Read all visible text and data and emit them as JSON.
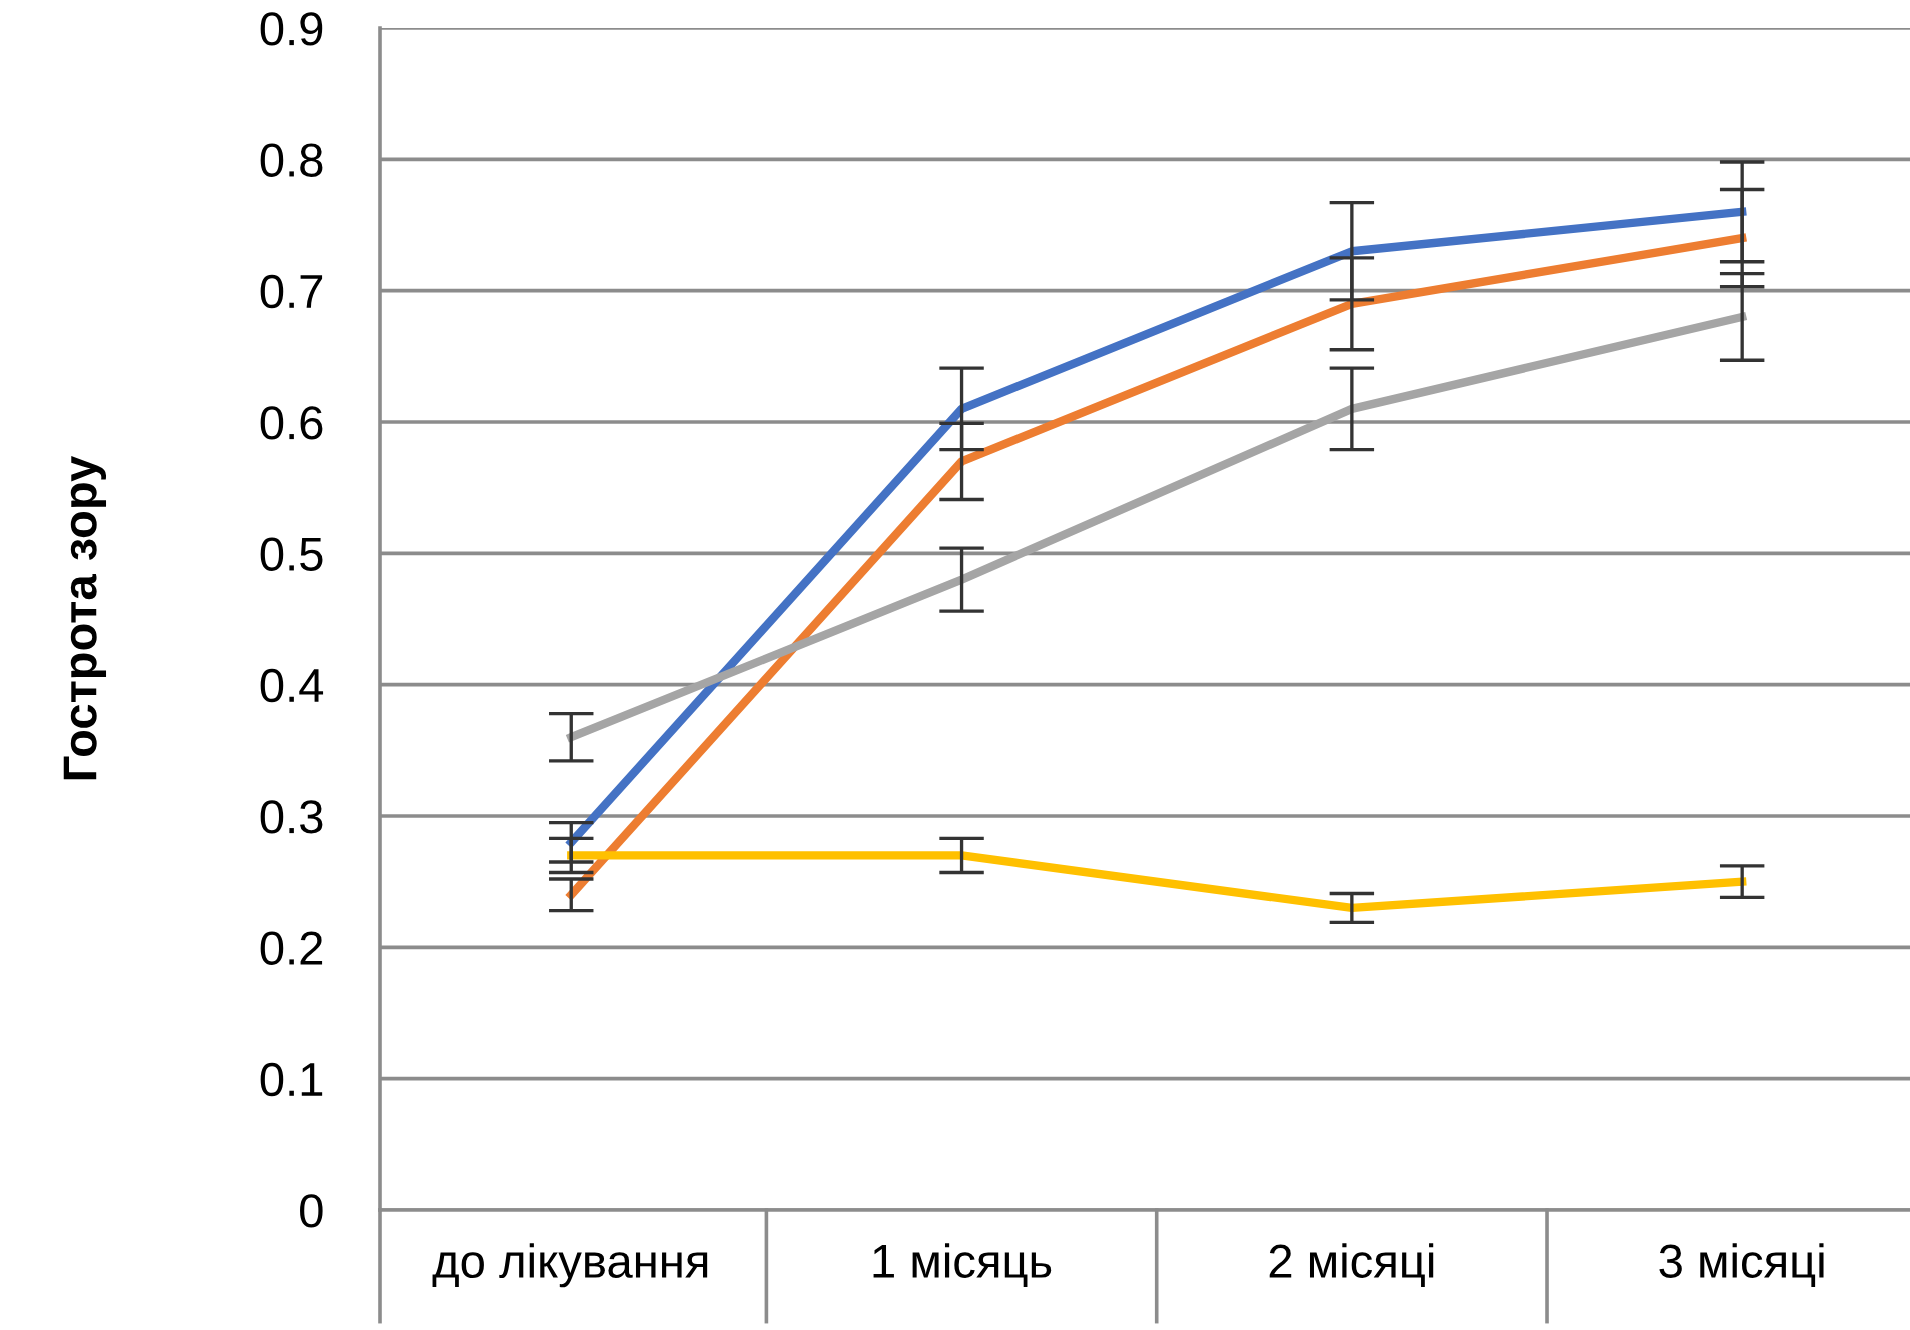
{
  "chart_data": {
    "type": "line",
    "ylabel": "Гострота зору",
    "categories": [
      "до лікування",
      "1 місяць",
      "2 місяці",
      "3 місяці"
    ],
    "series": [
      {
        "color": "#4472c4",
        "values": [
          0.28,
          0.61,
          0.73,
          0.76
        ],
        "errors": [
          0.015,
          0.031,
          0.037,
          0.038
        ]
      },
      {
        "color": "#ed7d31",
        "values": [
          0.24,
          0.57,
          0.69,
          0.74
        ],
        "errors": [
          0.012,
          0.029,
          0.035,
          0.037
        ]
      },
      {
        "color": "#a5a5a5",
        "values": [
          0.36,
          0.48,
          0.61,
          0.68
        ],
        "errors": [
          0.018,
          0.024,
          0.031,
          0.033
        ]
      },
      {
        "color": "#ffc000",
        "values": [
          0.27,
          0.27,
          0.23,
          0.25
        ],
        "errors": [
          0.013,
          0.013,
          0.011,
          0.012
        ]
      }
    ],
    "ylim": [
      0,
      0.9
    ],
    "yticks": [
      0,
      0.1,
      0.2,
      0.3,
      0.4,
      0.5,
      0.6,
      0.7,
      0.8,
      0.9
    ],
    "grid": "y",
    "legend": false,
    "marker": "none",
    "line_style": "solid"
  }
}
